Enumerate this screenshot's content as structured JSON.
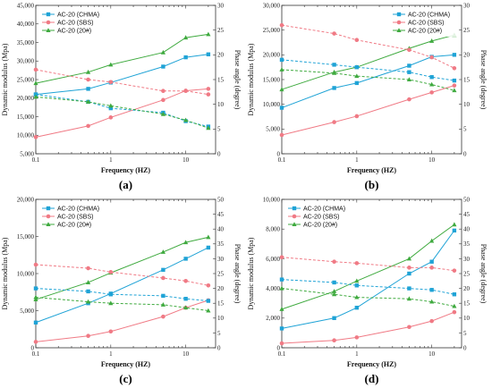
{
  "chart_data": [
    {
      "type": "line",
      "panel_label": "(a)",
      "xlabel": "Frequency (HZ)",
      "ylabel": "Dynamic modulus (Mpa)",
      "y2label": "Phase angle (degree)",
      "xscale": "log",
      "xlim": [
        0.1,
        25
      ],
      "xticks": [
        0.1,
        1,
        10
      ],
      "xticklabels": [
        "0.1",
        "1",
        "10"
      ],
      "ylim": [
        5000,
        45000
      ],
      "yticks": [
        5000,
        10000,
        15000,
        20000,
        25000,
        30000,
        35000,
        40000,
        45000
      ],
      "yticklabels": [
        "5,000",
        "10,000",
        "15,000",
        "20,000",
        "25,000",
        "30,000",
        "35,000",
        "40,000",
        "45,000"
      ],
      "y2lim": [
        0,
        30
      ],
      "y2ticks": [
        0,
        5,
        10,
        15,
        20,
        25,
        30
      ],
      "y2ticklabels": [
        "0",
        "5",
        "10",
        "15",
        "20",
        "25",
        "30"
      ],
      "x": [
        0.1,
        0.5,
        1,
        5,
        10,
        20
      ],
      "legend_position": "top-left",
      "series": [
        {
          "name": "AC-20 (CHMA)",
          "color": "#1fa3d6",
          "marker": "square",
          "axis": "left",
          "dashed": false,
          "values": [
            21000,
            22500,
            24200,
            28500,
            31000,
            31800
          ]
        },
        {
          "name": "AC-20 (SBS)",
          "color": "#f07a85",
          "marker": "circle",
          "axis": "left",
          "dashed": false,
          "values": [
            9500,
            12500,
            14800,
            19500,
            22000,
            22500
          ]
        },
        {
          "name": "AC-20 (20#)",
          "color": "#3faa3f",
          "marker": "triangle",
          "axis": "left",
          "dashed": false,
          "values": [
            24000,
            27000,
            29000,
            32300,
            36300,
            37200
          ]
        },
        {
          "name": "",
          "color": "#1fa3d6",
          "marker": "square",
          "axis": "right",
          "dashed": true,
          "values": [
            12.0,
            10.5,
            9.2,
            8.3,
            6.6,
            5.5
          ]
        },
        {
          "name": "",
          "color": "#f07a85",
          "marker": "circle",
          "axis": "right",
          "dashed": true,
          "values": [
            17.0,
            15.0,
            14.5,
            12.7,
            12.7,
            12.0
          ]
        },
        {
          "name": "",
          "color": "#3faa3f",
          "marker": "triangle",
          "axis": "right",
          "dashed": true,
          "values": [
            11.5,
            10.5,
            9.7,
            8.0,
            6.8,
            5.2
          ]
        }
      ]
    },
    {
      "type": "line",
      "panel_label": "(b)",
      "xlabel": "Frequency (HZ)",
      "ylabel": "Dynamic modulus (Mpa)",
      "y2label": "Phase angle (degree)",
      "xscale": "log",
      "xlim": [
        0.1,
        25
      ],
      "xticks": [
        0.1,
        1,
        10
      ],
      "xticklabels": [
        "0.1",
        "1",
        "10"
      ],
      "ylim": [
        0,
        30000
      ],
      "yticks": [
        0,
        5000,
        10000,
        15000,
        20000,
        25000,
        30000
      ],
      "yticklabels": [
        "0",
        "5,000",
        "10,000",
        "15,000",
        "20,000",
        "25,000",
        "30,000"
      ],
      "y2lim": [
        0,
        30
      ],
      "y2ticks": [
        0,
        5,
        10,
        15,
        20,
        25,
        30
      ],
      "y2ticklabels": [
        "0",
        "5",
        "10",
        "15",
        "20",
        "25",
        "30"
      ],
      "x": [
        0.1,
        0.5,
        1,
        5,
        10,
        20
      ],
      "legend_position": "top-right",
      "series": [
        {
          "name": "AC-20 (CHMA)",
          "color": "#1fa3d6",
          "marker": "square",
          "axis": "left",
          "dashed": false,
          "values": [
            9300,
            13300,
            14300,
            17800,
            19600,
            20000
          ]
        },
        {
          "name": "AC-20 (SBS)",
          "color": "#f07a85",
          "marker": "circle",
          "axis": "left",
          "dashed": false,
          "values": [
            3800,
            6400,
            7600,
            11000,
            12400,
            13800
          ]
        },
        {
          "name": "AC-20 (20#)",
          "color": "#3faa3f",
          "marker": "triangle",
          "axis": "left",
          "dashed": false,
          "values": [
            13000,
            16500,
            17500,
            21300,
            22800,
            24000
          ]
        },
        {
          "name": "",
          "color": "#1fa3d6",
          "marker": "square",
          "axis": "right",
          "dashed": true,
          "values": [
            19.0,
            18.0,
            17.5,
            16.5,
            15.5,
            14.8
          ]
        },
        {
          "name": "",
          "color": "#f07a85",
          "marker": "circle",
          "axis": "right",
          "dashed": true,
          "values": [
            26.0,
            24.3,
            23.0,
            21.0,
            19.5,
            17.3
          ]
        },
        {
          "name": "",
          "color": "#3faa3f",
          "marker": "triangle",
          "axis": "right",
          "dashed": true,
          "values": [
            17.0,
            16.3,
            15.7,
            15.0,
            14.0,
            12.8
          ]
        }
      ]
    },
    {
      "type": "line",
      "panel_label": "(c)",
      "xlabel": "Frequency (HZ)",
      "ylabel": "Dynamic modulus (Mpa)",
      "y2label": "Phase angle (degree)",
      "xscale": "log",
      "xlim": [
        0.1,
        25
      ],
      "xticks": [
        0.1,
        1,
        10
      ],
      "xticklabels": [
        "0.1",
        "1",
        "10"
      ],
      "ylim": [
        0,
        20000
      ],
      "yticks": [
        0,
        5000,
        10000,
        15000,
        20000
      ],
      "yticklabels": [
        "0",
        "5,000",
        "10,000",
        "15,000",
        "20,000"
      ],
      "y2lim": [
        0,
        50
      ],
      "y2ticks": [
        0,
        5,
        10,
        15,
        20,
        25,
        30,
        35,
        40,
        45,
        50
      ],
      "y2ticklabels": [
        "0",
        "5",
        "10",
        "15",
        "20",
        "25",
        "30",
        "35",
        "40",
        "45",
        "50"
      ],
      "x": [
        0.1,
        0.5,
        1,
        5,
        10,
        20
      ],
      "legend_position": "top-left",
      "series": [
        {
          "name": "AC-20 (CHMA)",
          "color": "#1fa3d6",
          "marker": "square",
          "axis": "left",
          "dashed": false,
          "values": [
            3400,
            6000,
            7300,
            10500,
            12000,
            13500
          ]
        },
        {
          "name": "AC-20 (SBS)",
          "color": "#f07a85",
          "marker": "circle",
          "axis": "left",
          "dashed": false,
          "values": [
            800,
            1600,
            2200,
            4200,
            5400,
            6400
          ]
        },
        {
          "name": "AC-20 (20#)",
          "color": "#3faa3f",
          "marker": "triangle",
          "axis": "left",
          "dashed": false,
          "values": [
            6500,
            8800,
            10100,
            12900,
            14200,
            14900
          ]
        },
        {
          "name": "",
          "color": "#1fa3d6",
          "marker": "square",
          "axis": "right",
          "dashed": true,
          "values": [
            20.0,
            19.0,
            18.0,
            17.5,
            16.5,
            15.8
          ]
        },
        {
          "name": "",
          "color": "#f07a85",
          "marker": "circle",
          "axis": "right",
          "dashed": true,
          "values": [
            28.0,
            26.8,
            25.5,
            23.5,
            22.5,
            21.0
          ]
        },
        {
          "name": "",
          "color": "#3faa3f",
          "marker": "triangle",
          "axis": "right",
          "dashed": true,
          "values": [
            17.0,
            15.5,
            15.0,
            14.5,
            13.5,
            12.5
          ]
        }
      ]
    },
    {
      "type": "line",
      "panel_label": "(d)",
      "xlabel": "Frequency (HZ)",
      "ylabel": "Dynamic modulus (Mpa)",
      "y2label": "Phase angle (degree)",
      "xscale": "log",
      "xlim": [
        0.1,
        25
      ],
      "xticks": [
        0.1,
        1,
        10
      ],
      "xticklabels": [
        "0.1",
        "1",
        "10"
      ],
      "ylim": [
        0,
        10000
      ],
      "yticks": [
        0,
        2000,
        4000,
        6000,
        8000,
        10000
      ],
      "yticklabels": [
        "0",
        "2,000",
        "4,000",
        "6,000",
        "8,000",
        "10,000"
      ],
      "y2lim": [
        0,
        50
      ],
      "y2ticks": [
        0,
        5,
        10,
        15,
        20,
        25,
        30,
        35,
        40,
        45,
        50
      ],
      "y2ticklabels": [
        "0",
        "5",
        "10",
        "15",
        "20",
        "25",
        "30",
        "35",
        "40",
        "45",
        "50"
      ],
      "x": [
        0.1,
        0.5,
        1,
        5,
        10,
        20
      ],
      "legend_position": "top-left",
      "series": [
        {
          "name": "AC-20 (CHMA)",
          "color": "#1fa3d6",
          "marker": "square",
          "axis": "left",
          "dashed": false,
          "values": [
            1300,
            2000,
            2700,
            5000,
            5800,
            7900
          ]
        },
        {
          "name": "AC-20 (SBS)",
          "color": "#f07a85",
          "marker": "circle",
          "axis": "left",
          "dashed": false,
          "values": [
            300,
            500,
            700,
            1400,
            1800,
            2400
          ]
        },
        {
          "name": "AC-20 (20#)",
          "color": "#3faa3f",
          "marker": "triangle",
          "axis": "left",
          "dashed": false,
          "values": [
            2600,
            3800,
            4500,
            6000,
            7200,
            8300
          ]
        },
        {
          "name": "",
          "color": "#1fa3d6",
          "marker": "square",
          "axis": "right",
          "dashed": true,
          "values": [
            23.0,
            22.0,
            21.0,
            20.0,
            19.5,
            18.0
          ]
        },
        {
          "name": "",
          "color": "#f07a85",
          "marker": "circle",
          "axis": "right",
          "dashed": true,
          "values": [
            30.5,
            29.0,
            28.5,
            27.0,
            27.0,
            26.0
          ]
        },
        {
          "name": "",
          "color": "#3faa3f",
          "marker": "triangle",
          "axis": "right",
          "dashed": true,
          "values": [
            20.0,
            18.0,
            17.0,
            16.5,
            15.5,
            14.0
          ]
        }
      ]
    }
  ]
}
